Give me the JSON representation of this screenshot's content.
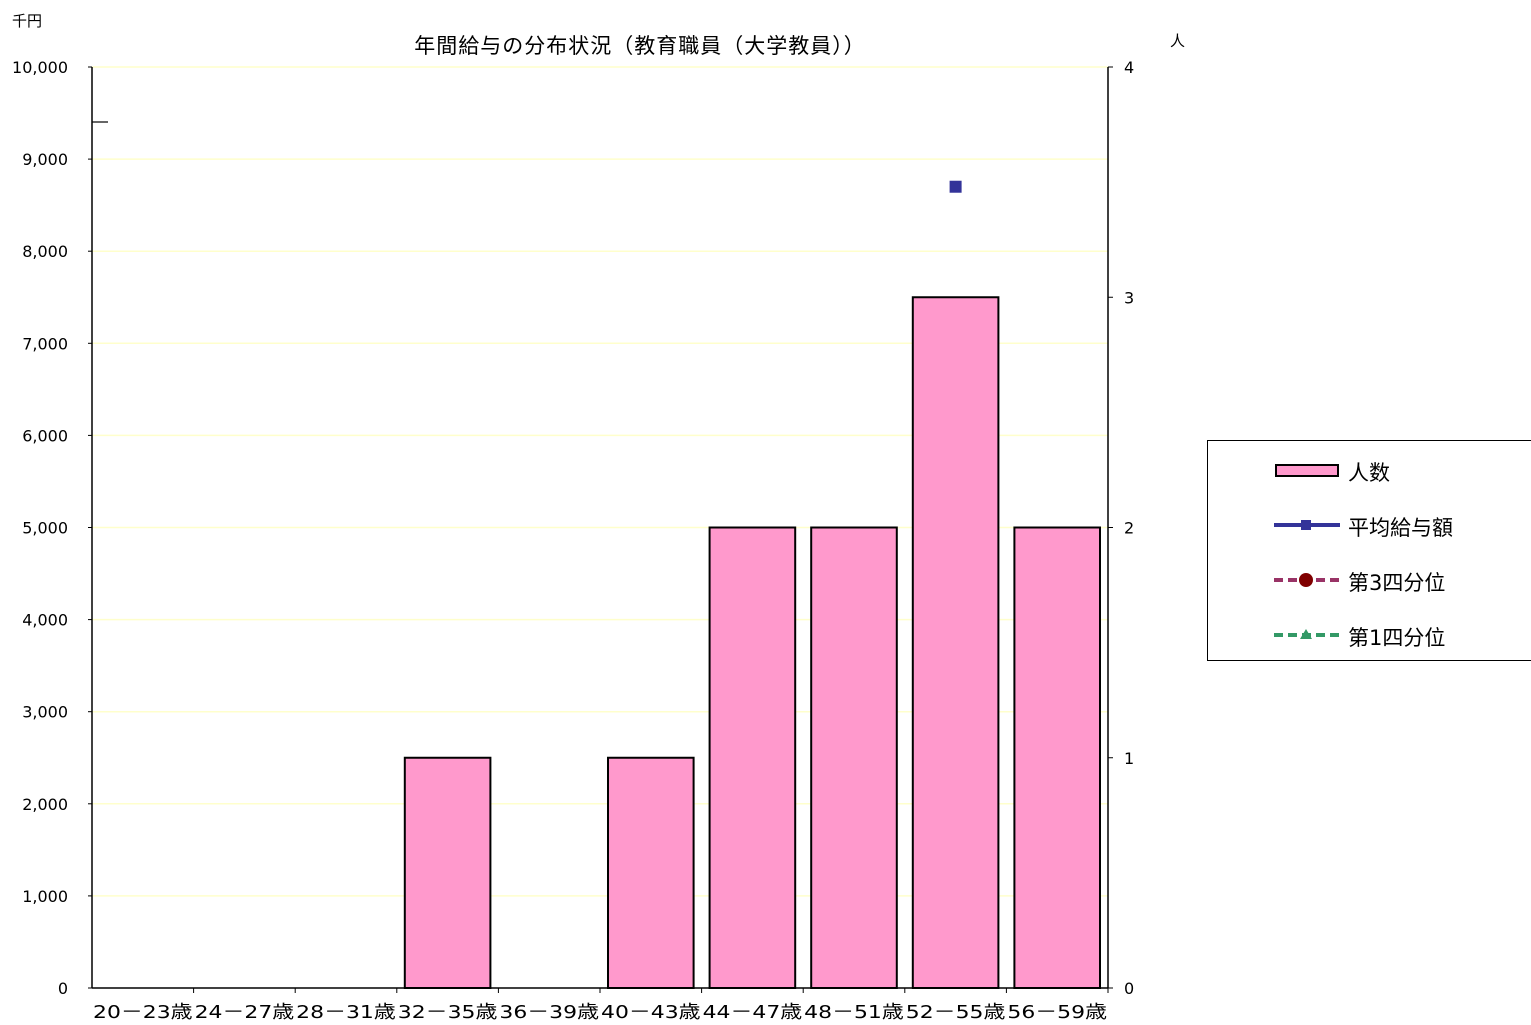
{
  "chart_data": {
    "type": "bar",
    "title": "年間給与の分布状況（教育職員（大学教員））",
    "left_axis_unit": "千円",
    "right_axis_unit": "人",
    "categories": [
      "20－23歳",
      "24－27歳",
      "28－31歳",
      "32－35歳",
      "36－39歳",
      "40－43歳",
      "44－47歳",
      "48－51歳",
      "52－55歳",
      "56－59歳"
    ],
    "series": [
      {
        "name": "人数",
        "type": "bar",
        "axis": "right",
        "values": [
          0,
          0,
          0,
          1,
          0,
          1,
          2,
          2,
          3,
          2
        ],
        "color": "#ff99cc"
      },
      {
        "name": "平均給与額",
        "type": "line",
        "axis": "left",
        "values": [
          null,
          null,
          null,
          null,
          null,
          null,
          null,
          null,
          8700,
          null
        ],
        "color": "#333399"
      },
      {
        "name": "第3四分位",
        "type": "line",
        "axis": "left",
        "values": [
          null,
          null,
          null,
          null,
          null,
          null,
          null,
          null,
          null,
          null
        ],
        "color": "#993366"
      },
      {
        "name": "第1四分位",
        "type": "line",
        "axis": "left",
        "values": [
          null,
          null,
          null,
          null,
          null,
          null,
          null,
          null,
          null,
          null
        ],
        "color": "#339966"
      }
    ],
    "left_axis": {
      "min": 0,
      "max": 10000,
      "step": 1000,
      "ticks": [
        "0",
        "1,000",
        "2,000",
        "3,000",
        "4,000",
        "5,000",
        "6,000",
        "7,000",
        "8,000",
        "9,000",
        "10,000"
      ]
    },
    "right_axis": {
      "min": 0,
      "max": 4,
      "step": 1,
      "ticks": [
        "0",
        "1",
        "2",
        "3",
        "4"
      ]
    },
    "grid": true,
    "grid_color": "#ffffcc",
    "legend_position": "right"
  }
}
